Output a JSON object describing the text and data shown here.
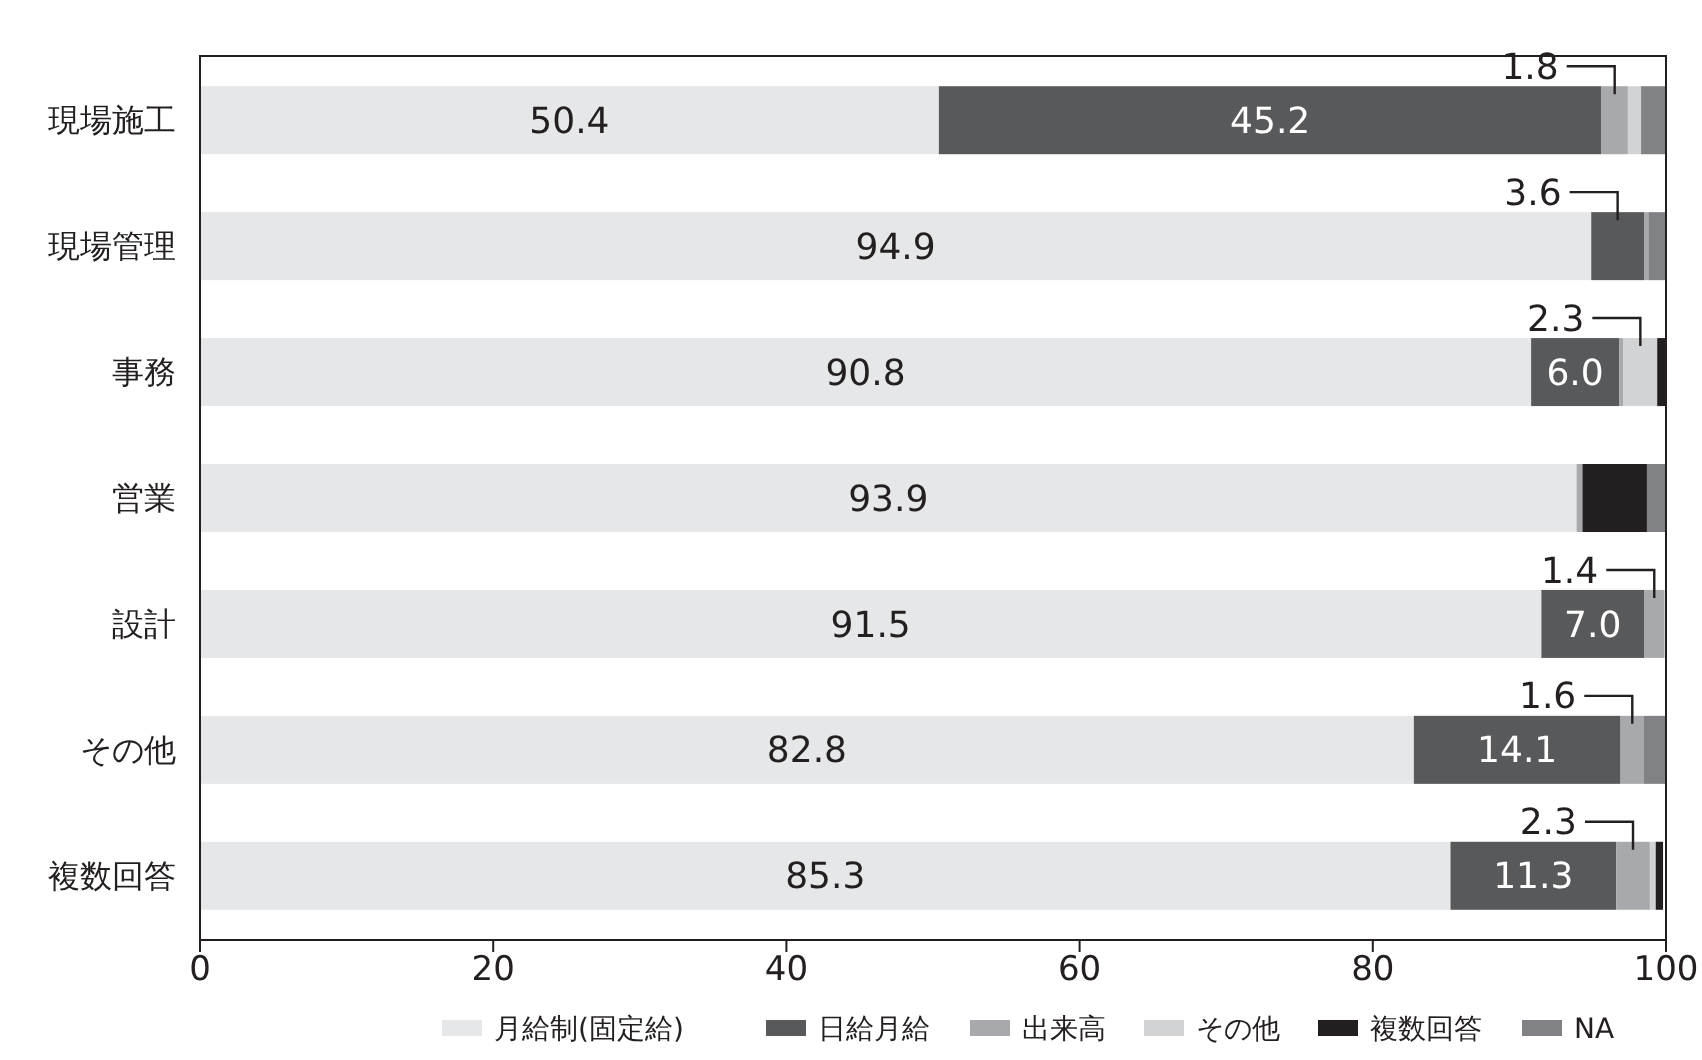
{
  "chart_data": {
    "type": "bar",
    "orientation": "horizontal",
    "stacked": true,
    "categories": [
      "現場施工",
      "現場管理",
      "事務",
      "営業",
      "設計",
      "その他",
      "複数回答"
    ],
    "series": [
      {
        "name": "月給制(固定給)",
        "color": "#e6e7e8",
        "values": [
          50.4,
          94.9,
          90.8,
          93.9,
          91.5,
          82.8,
          85.3
        ],
        "value_labels": [
          "50.4",
          "94.9",
          "90.8",
          "93.9",
          "91.5",
          "82.8",
          "85.3"
        ]
      },
      {
        "name": "日給月給",
        "color": "#58595b",
        "values": [
          45.2,
          3.6,
          6.0,
          null,
          7.0,
          14.1,
          11.3
        ],
        "value_labels": [
          "45.2",
          "3.6",
          "6.0",
          null,
          "7.0",
          "14.1",
          "11.3"
        ]
      },
      {
        "name": "出来高",
        "color": "#a7a9ac",
        "values": [
          1.8,
          0.3,
          0.3,
          0.4,
          1.4,
          1.6,
          2.3
        ],
        "value_labels": [
          "1.8",
          null,
          null,
          null,
          "1.4",
          "1.6",
          "2.3"
        ]
      },
      {
        "name": "その他",
        "color": "#d1d3d4",
        "values": [
          0.9,
          null,
          2.3,
          null,
          null,
          null,
          0.4
        ],
        "value_labels": [
          null,
          null,
          "2.3",
          null,
          null,
          null,
          null
        ]
      },
      {
        "name": "複数回答",
        "color": "#231f20",
        "values": [
          null,
          null,
          0.6,
          4.4,
          null,
          null,
          0.5
        ],
        "value_labels": [
          null,
          null,
          null,
          null,
          null,
          null,
          null
        ]
      },
      {
        "name": "NA",
        "color": "#808285",
        "values": [
          1.7,
          1.2,
          null,
          1.3,
          null,
          1.5,
          null
        ],
        "value_labels": [
          null,
          null,
          null,
          null,
          null,
          null,
          null
        ]
      }
    ],
    "xlim": [
      0,
      100
    ],
    "xticks": [
      0,
      20,
      40,
      60,
      80,
      100
    ],
    "grid": false,
    "legend": "bottom"
  }
}
